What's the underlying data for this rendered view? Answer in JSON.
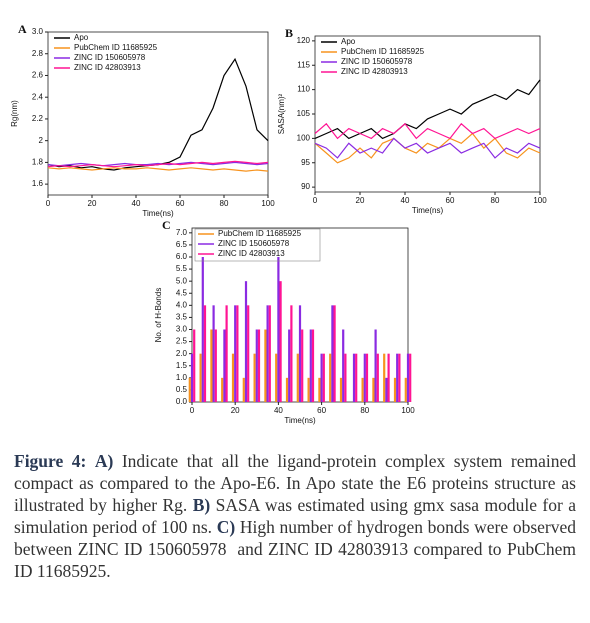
{
  "chart_data": [
    {
      "type": "line",
      "panel": "A",
      "x_label": "Time(ns)",
      "y_label": "Rg(nm)",
      "legend": "upper left",
      "x": [
        0,
        5,
        10,
        15,
        20,
        25,
        30,
        35,
        40,
        45,
        50,
        55,
        60,
        65,
        70,
        75,
        80,
        85,
        90,
        95,
        100
      ],
      "xlim": [
        0,
        100
      ],
      "xticks": [
        0,
        20,
        40,
        60,
        80,
        100
      ],
      "ylim": [
        1.5,
        3.0
      ],
      "yticks": [
        1.6,
        1.8,
        2.0,
        2.2,
        2.4,
        2.6,
        2.8,
        {
          "value": 3.0,
          "label": "3.0"
        }
      ],
      "series": [
        {
          "name": "Apo",
          "color": "#000000",
          "values": [
            1.78,
            1.76,
            1.77,
            1.75,
            1.76,
            1.74,
            1.73,
            1.75,
            1.76,
            1.77,
            1.78,
            1.8,
            1.85,
            2.05,
            2.1,
            2.3,
            2.6,
            2.75,
            2.5,
            2.1,
            2.0
          ]
        },
        {
          "name": "PubChem ID 11685925",
          "color": "#f7931e",
          "values": [
            1.75,
            1.74,
            1.75,
            1.74,
            1.73,
            1.74,
            1.75,
            1.74,
            1.74,
            1.75,
            1.74,
            1.73,
            1.74,
            1.75,
            1.74,
            1.73,
            1.74,
            1.73,
            1.72,
            1.73,
            1.72
          ]
        },
        {
          "name": "ZINC ID 150605978",
          "color": "#8a2be2",
          "values": [
            1.78,
            1.77,
            1.78,
            1.79,
            1.78,
            1.77,
            1.78,
            1.79,
            1.78,
            1.78,
            1.79,
            1.78,
            1.79,
            1.8,
            1.79,
            1.78,
            1.79,
            1.8,
            1.79,
            1.78,
            1.79
          ]
        },
        {
          "name": "ZINC ID 42803913",
          "color": "#ff1493",
          "values": [
            1.76,
            1.77,
            1.76,
            1.77,
            1.78,
            1.77,
            1.76,
            1.77,
            1.78,
            1.77,
            1.78,
            1.79,
            1.78,
            1.79,
            1.8,
            1.79,
            1.8,
            1.81,
            1.8,
            1.79,
            1.8
          ]
        }
      ]
    },
    {
      "type": "line",
      "panel": "B",
      "x_label": "Time(ns)",
      "y_label": "SASA(nm)²",
      "legend": "upper left",
      "x": [
        0,
        5,
        10,
        15,
        20,
        25,
        30,
        35,
        40,
        45,
        50,
        55,
        60,
        65,
        70,
        75,
        80,
        85,
        90,
        95,
        100
      ],
      "xlim": [
        0,
        100
      ],
      "xticks": [
        0,
        20,
        40,
        60,
        80,
        100
      ],
      "ylim": [
        89,
        121
      ],
      "yticks": [
        90,
        95,
        100,
        105,
        110,
        115,
        120
      ],
      "series": [
        {
          "name": "Apo",
          "color": "#000000",
          "values": [
            100,
            101,
            102,
            100,
            101,
            102,
            100,
            101,
            103,
            102,
            104,
            105,
            106,
            105,
            107,
            108,
            109,
            108,
            110,
            109,
            112
          ]
        },
        {
          "name": "PubChem ID 11685925",
          "color": "#f7931e",
          "values": [
            99,
            97,
            95,
            96,
            98,
            96,
            99,
            100,
            98,
            97,
            99,
            98,
            100,
            99,
            101,
            98,
            100,
            97,
            96,
            98,
            97
          ]
        },
        {
          "name": "ZINC ID 150605978",
          "color": "#8a2be2",
          "values": [
            99,
            98,
            96,
            99,
            97,
            98,
            97,
            100,
            98,
            99,
            97,
            98,
            99,
            97,
            98,
            99,
            96,
            98,
            97,
            99,
            98
          ]
        },
        {
          "name": "ZINC ID 42803913",
          "color": "#ff1493",
          "values": [
            101,
            103,
            100,
            102,
            101,
            100,
            102,
            101,
            103,
            100,
            102,
            101,
            100,
            103,
            101,
            102,
            100,
            101,
            102,
            101,
            102
          ]
        }
      ]
    },
    {
      "type": "bar",
      "panel": "C",
      "x_label": "Time(ns)",
      "y_label": "No. of H-Bonds",
      "legend": "upper left",
      "x": [
        0,
        5,
        10,
        15,
        20,
        25,
        30,
        35,
        40,
        45,
        50,
        55,
        60,
        65,
        70,
        75,
        80,
        85,
        90,
        95,
        100
      ],
      "xlim": [
        0,
        100
      ],
      "xticks": [
        0,
        20,
        40,
        60,
        80,
        100
      ],
      "ylim": [
        0,
        7.2
      ],
      "yticks": [
        {
          "value": 0,
          "label": "0.0"
        },
        0.5,
        {
          "value": 1,
          "label": "1.0"
        },
        1.5,
        {
          "value": 2,
          "label": "2.0"
        },
        2.5,
        {
          "value": 3,
          "label": "3.0"
        },
        3.5,
        {
          "value": 4,
          "label": "4.0"
        },
        4.5,
        {
          "value": 5,
          "label": "5.0"
        },
        5.5,
        {
          "value": 6,
          "label": "6.0"
        },
        6.5,
        {
          "value": 7,
          "label": "7.0"
        }
      ],
      "series": [
        {
          "name": "PubChem ID 11685925",
          "color": "#f7931e",
          "values": [
            1,
            2,
            3,
            1,
            2,
            1,
            2,
            3,
            2,
            1,
            2,
            1,
            1,
            2,
            1,
            0,
            1,
            1,
            2,
            1,
            1
          ]
        },
        {
          "name": "ZINC ID 150605978",
          "color": "#8a2be2",
          "values": [
            2,
            6,
            4,
            3,
            4,
            5,
            3,
            4,
            6,
            3,
            4,
            3,
            2,
            4,
            3,
            2,
            2,
            3,
            1,
            2,
            2
          ]
        },
        {
          "name": "ZINC ID 42803913",
          "color": "#ff1493",
          "values": [
            3,
            4,
            3,
            4,
            4,
            4,
            3,
            4,
            5,
            4,
            3,
            3,
            2,
            4,
            2,
            2,
            2,
            2,
            2,
            2,
            2
          ]
        }
      ]
    }
  ],
  "caption": {
    "title": "Figure 4:",
    "parts": [
      {
        "label": "A)",
        "text": "Indicate that all the ligand-protein complex system remained compact as compared to the Apo-E6. In Apo state the E6 proteins structure as illustrated by higher Rg."
      },
      {
        "label": "B)",
        "text": "SASA was estimated using gmx sasa module for a simulation period of 100 ns."
      },
      {
        "label": "C)",
        "text": "High number of hydrogen bonds were observed between ZINC ID 150605978  and ZINC ID 42803913 compared to PubChem ID 11685925."
      }
    ]
  }
}
